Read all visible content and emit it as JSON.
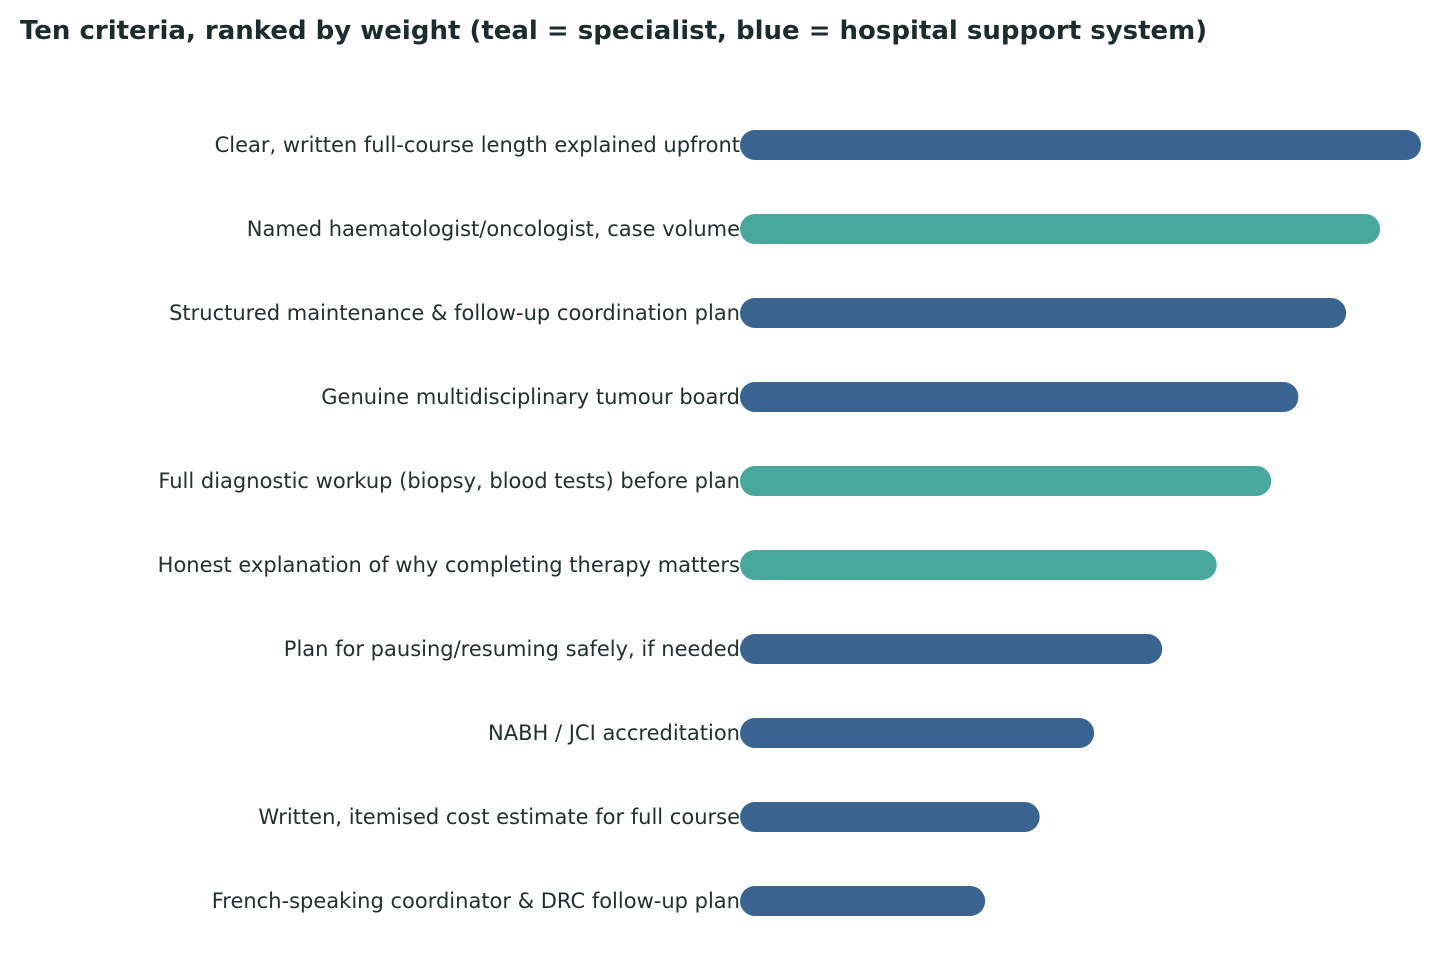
{
  "chart_data": {
    "type": "bar",
    "orientation": "horizontal",
    "title": "Ten criteria, ranked by weight (teal = specialist, blue = hospital support system)",
    "xlabel": "",
    "ylabel": "",
    "grid": false,
    "legend": "none",
    "xlim": [
      0,
      100
    ],
    "categories": [
      "Clear, written full-course length explained upfront",
      "Named haematologist/oncologist, case volume",
      "Structured maintenance & follow-up coordination plan",
      "Genuine multidisciplinary tumour board",
      "Full diagnostic workup (biopsy, blood tests) before plan",
      "Honest explanation of why completing therapy matters",
      "Plan for pausing/resuming safely, if needed",
      "NABH / JCI accreditation",
      "Written, itemised cost estimate for full course",
      "French-speaking coordinator & DRC follow-up plan"
    ],
    "values": [
      100,
      94,
      89,
      82,
      78,
      70,
      62,
      52,
      44,
      36
    ],
    "groups": [
      "hospital",
      "specialist",
      "hospital",
      "hospital",
      "specialist",
      "specialist",
      "hospital",
      "hospital",
      "hospital",
      "hospital"
    ],
    "colors": {
      "specialist": "#48a89b",
      "hospital": "#3a648f"
    }
  }
}
